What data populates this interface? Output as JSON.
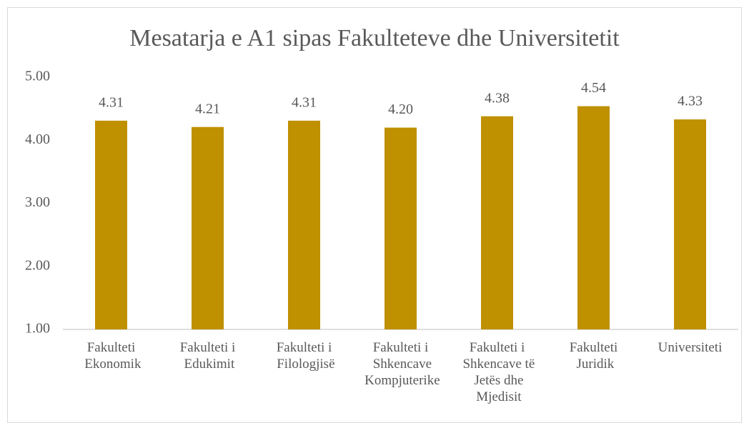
{
  "chart_data": {
    "type": "bar",
    "title": "Mesatarja e A1 sipas Fakulteteve dhe Universitetit",
    "categories": [
      "Fakulteti Ekonomik",
      "Fakulteti i Edukimit",
      "Fakulteti i Filologjisë",
      "Fakulteti i Shkencave Kompjuterike",
      "Fakulteti i Shkencave të Jetës dhe Mjedisit",
      "Fakulteti Juridik",
      "Universiteti"
    ],
    "values": [
      4.31,
      4.21,
      4.31,
      4.2,
      4.38,
      4.54,
      4.33
    ],
    "value_labels": [
      "4.31",
      "4.21",
      "4.31",
      "4.20",
      "4.38",
      "4.54",
      "4.33"
    ],
    "color": "#bf9000",
    "ylim": [
      1,
      5
    ],
    "yticks": [
      {
        "value": 1,
        "label": "1.00"
      },
      {
        "value": 2,
        "label": "2.00"
      },
      {
        "value": 3,
        "label": "3.00"
      },
      {
        "value": 4,
        "label": "4.00"
      },
      {
        "value": 5,
        "label": "5.00"
      }
    ],
    "grid": false
  }
}
